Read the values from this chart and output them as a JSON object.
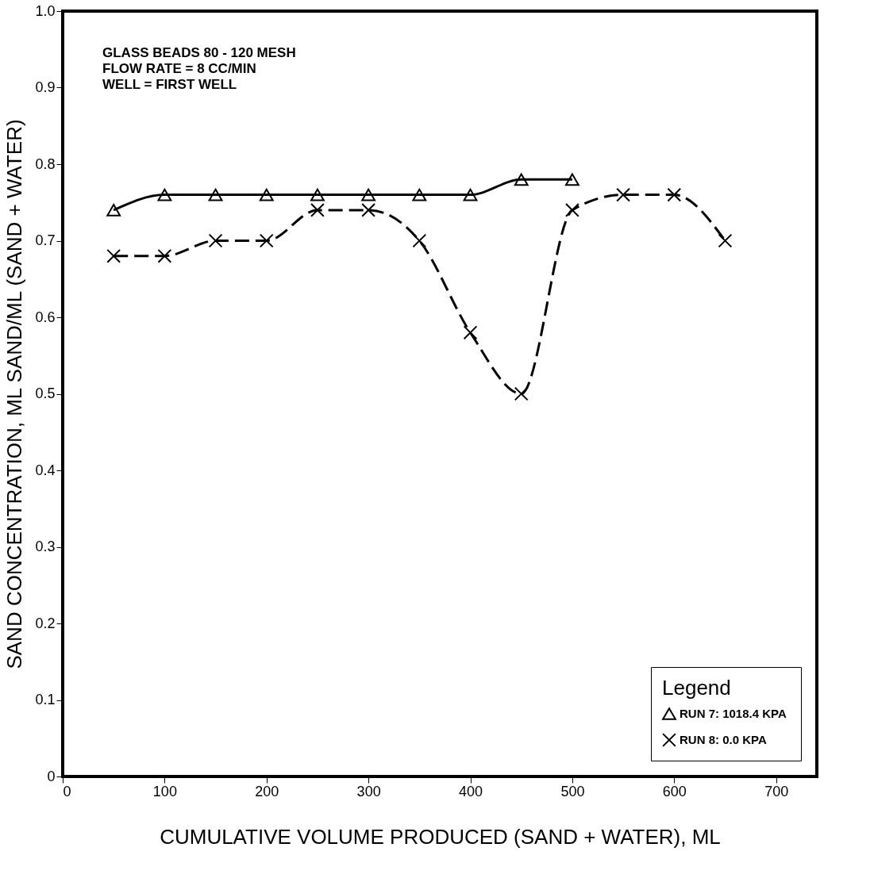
{
  "chart_data": {
    "type": "line",
    "xlabel": "CUMULATIVE VOLUME PRODUCED (SAND + WATER), ML",
    "ylabel": "SAND CONCENTRATION, ML  SAND/ML (SAND + WATER)",
    "legend_title": "Legend",
    "annotations": [
      "GLASS BEADS 80 - 120 MESH",
      "FLOW RATE = 8 CC/MIN",
      "WELL = FIRST WELL"
    ],
    "x": [
      50,
      100,
      150,
      200,
      250,
      300,
      350,
      400,
      450,
      500,
      550,
      600,
      650
    ],
    "xlim": [
      0,
      740
    ],
    "xticks": [
      0,
      100,
      200,
      300,
      400,
      500,
      600,
      700
    ],
    "ylim": [
      0,
      1
    ],
    "yticks": [
      0,
      0.1,
      0.2,
      0.3,
      0.4,
      0.5,
      0.6,
      0.7,
      0.8,
      0.9,
      {
        "value": 1,
        "label": "1.0"
      }
    ],
    "grid": false,
    "legend": "bottom right",
    "series": [
      {
        "name": "RUN  7: 1018.4 KPA",
        "color": "#000000",
        "marker": "triangle",
        "line_style": "solid",
        "x": [
          50,
          100,
          150,
          200,
          250,
          300,
          350,
          400,
          450,
          500
        ],
        "values": [
          0.74,
          0.76,
          0.76,
          0.76,
          0.76,
          0.76,
          0.76,
          0.76,
          0.78,
          0.78
        ]
      },
      {
        "name": "RUN 8: 0.0 KPA",
        "color": "#000000",
        "marker": "cross",
        "line_style": "dashed",
        "values": [
          0.68,
          0.68,
          0.7,
          0.7,
          0.74,
          0.74,
          0.7,
          0.58,
          0.5,
          0.74,
          0.76,
          0.76,
          0.7
        ]
      }
    ]
  }
}
